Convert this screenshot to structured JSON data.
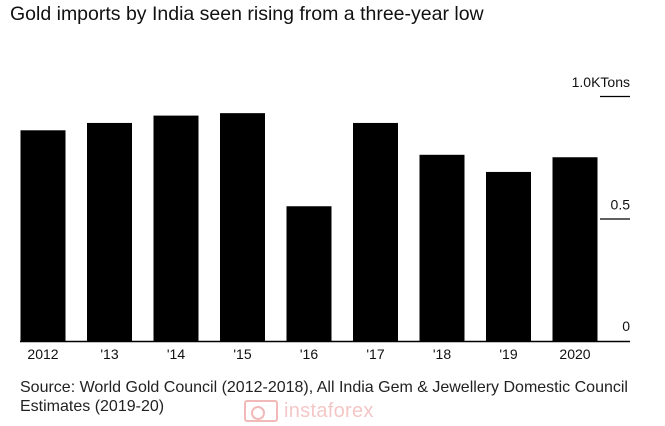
{
  "header": {
    "title": "Gold imports by India seen rising from a three-year low"
  },
  "source_note": "Source: World Gold Council (2012-2018), All India Gem & Jewellery Domestic Council Estimates (2019-20)",
  "watermark": {
    "text": "instaforex",
    "icon": "instaforex-logo-icon",
    "color": "#f4c7c7"
  },
  "colors": {
    "bar": "#000000",
    "grid": "#000000",
    "text": "#111111"
  },
  "chart_data": {
    "type": "bar",
    "title": "Gold imports by India seen rising from a three-year low",
    "categories": [
      "2012",
      "'13",
      "'14",
      "'15",
      "'16",
      "'17",
      "'18",
      "'19",
      "2020"
    ],
    "values": [
      0.86,
      0.89,
      0.92,
      0.93,
      0.55,
      0.89,
      0.76,
      0.69,
      0.75
    ],
    "ylim": [
      0,
      1.0
    ],
    "yticks": [
      {
        "value": 0,
        "label": "0"
      },
      {
        "value": 0.5,
        "label": "0.5"
      },
      {
        "value": 1.0,
        "label": "1.0KTons"
      }
    ],
    "unit": "KTons",
    "grid": false,
    "axis_side": "right"
  }
}
